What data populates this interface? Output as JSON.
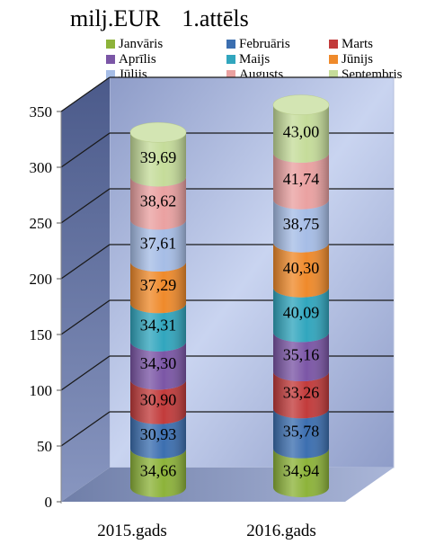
{
  "title_left": "milj.EUR",
  "title_right": "1.attēls",
  "chart_data": {
    "type": "bar",
    "stacked": true,
    "three_d": true,
    "categories": [
      "2015.gads",
      "2016.gads"
    ],
    "y_ticks": [
      "0",
      "50",
      "100",
      "150",
      "200",
      "250",
      "300",
      "350"
    ],
    "ylim": [
      0,
      350
    ],
    "grid": true,
    "legend_position": "top",
    "series": [
      {
        "name": "Janvāris",
        "color": "#8db33a",
        "values": [
          34.66,
          34.94
        ],
        "labels": [
          "34,66",
          "34,94"
        ]
      },
      {
        "name": "Februāris",
        "color": "#3c6fb0",
        "values": [
          30.93,
          35.78
        ],
        "labels": [
          "30,93",
          "35,78"
        ]
      },
      {
        "name": "Marts",
        "color": "#c23b3b",
        "values": [
          30.9,
          33.26
        ],
        "labels": [
          "30,90",
          "33,26"
        ]
      },
      {
        "name": "Aprīlis",
        "color": "#7b56a6",
        "values": [
          34.3,
          35.16
        ],
        "labels": [
          "34,30",
          "35,16"
        ]
      },
      {
        "name": "Maijs",
        "color": "#31a6be",
        "values": [
          34.31,
          40.09
        ],
        "labels": [
          "34,31",
          "40,09"
        ]
      },
      {
        "name": "Jūnijs",
        "color": "#ef8a2b",
        "values": [
          37.29,
          40.3
        ],
        "labels": [
          "37,29",
          "40,30"
        ]
      },
      {
        "name": "Jūlijs",
        "color": "#a6bde6",
        "values": [
          37.61,
          38.75
        ],
        "labels": [
          "37,61",
          "38,75"
        ]
      },
      {
        "name": "Augusts",
        "color": "#eaa1a1",
        "values": [
          38.62,
          41.74
        ],
        "labels": [
          "38,62",
          "41,74"
        ]
      },
      {
        "name": "Septembris",
        "color": "#c5dc9a",
        "values": [
          39.69,
          43.0
        ],
        "labels": [
          "39,69",
          "43,00"
        ]
      }
    ]
  }
}
